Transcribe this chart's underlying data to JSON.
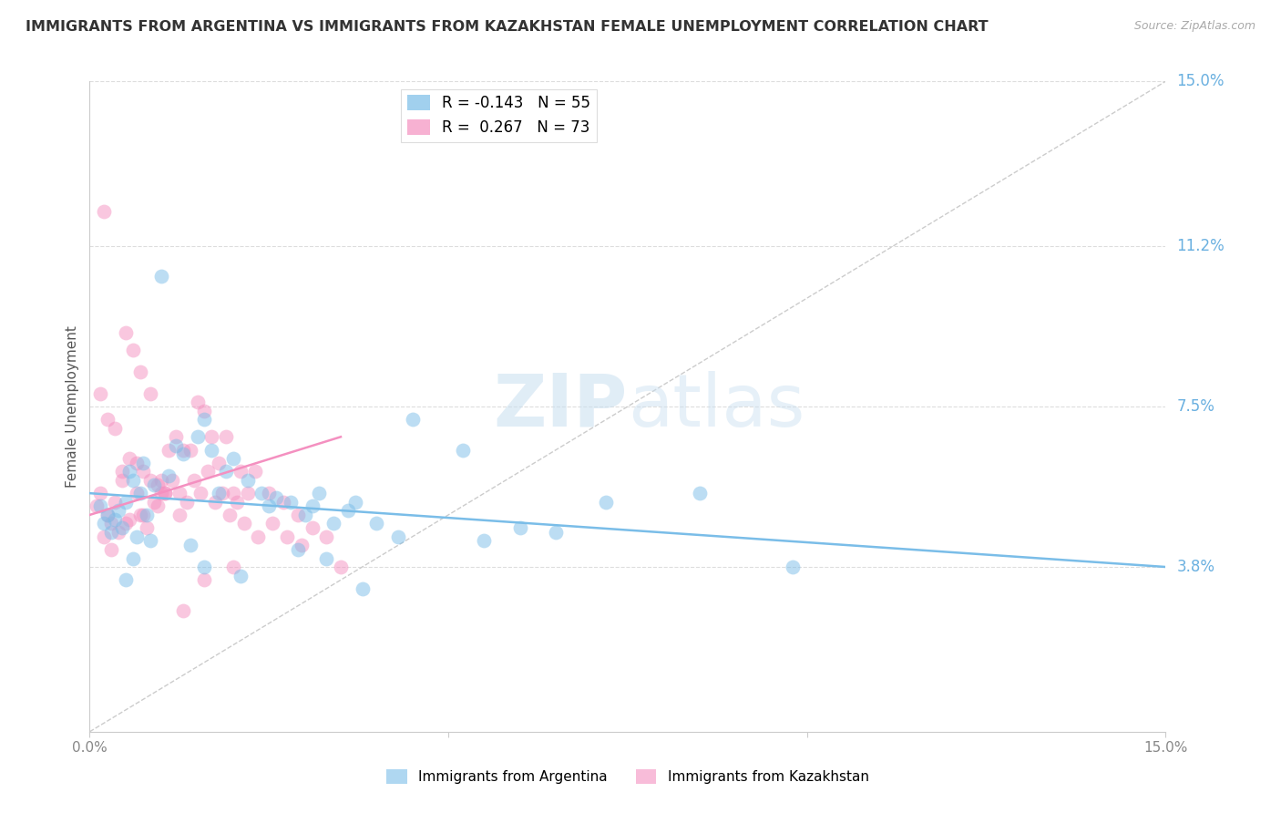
{
  "title": "IMMIGRANTS FROM ARGENTINA VS IMMIGRANTS FROM KAZAKHSTAN FEMALE UNEMPLOYMENT CORRELATION CHART",
  "source": "Source: ZipAtlas.com",
  "ylabel": "Female Unemployment",
  "right_yticks": [
    3.8,
    7.5,
    11.2,
    15.0
  ],
  "right_ytick_labels": [
    "3.8%",
    "7.5%",
    "11.2%",
    "15.0%"
  ],
  "xmin": 0.0,
  "xmax": 15.0,
  "ymin": 0.0,
  "ymax": 15.0,
  "argentina_color": "#7abde8",
  "kazakhstan_color": "#f490c0",
  "argentina_R": -0.143,
  "argentina_N": 55,
  "kazakhstan_R": 0.267,
  "kazakhstan_N": 73,
  "legend_label_argentina": "Immigrants from Argentina",
  "legend_label_kazakhstan": "Immigrants from Kazakhstan",
  "argentina_scatter_x": [
    0.15,
    0.2,
    0.25,
    0.3,
    0.35,
    0.4,
    0.45,
    0.5,
    0.55,
    0.6,
    0.65,
    0.7,
    0.75,
    0.8,
    0.85,
    0.9,
    1.0,
    1.1,
    1.2,
    1.3,
    1.5,
    1.6,
    1.7,
    1.8,
    1.9,
    2.0,
    2.2,
    2.4,
    2.5,
    2.6,
    2.8,
    3.0,
    3.1,
    3.2,
    3.4,
    3.6,
    3.7,
    4.0,
    4.3,
    4.5,
    5.2,
    5.5,
    6.0,
    6.5,
    7.2,
    8.5,
    0.5,
    0.6,
    1.4,
    1.6,
    2.1,
    2.9,
    3.3,
    3.8,
    9.8
  ],
  "argentina_scatter_y": [
    5.2,
    4.8,
    5.0,
    4.6,
    4.9,
    5.1,
    4.7,
    5.3,
    6.0,
    5.8,
    4.5,
    5.5,
    6.2,
    5.0,
    4.4,
    5.7,
    10.5,
    5.9,
    6.6,
    6.4,
    6.8,
    7.2,
    6.5,
    5.5,
    6.0,
    6.3,
    5.8,
    5.5,
    5.2,
    5.4,
    5.3,
    5.0,
    5.2,
    5.5,
    4.8,
    5.1,
    5.3,
    4.8,
    4.5,
    7.2,
    6.5,
    4.4,
    4.7,
    4.6,
    5.3,
    5.5,
    3.5,
    4.0,
    4.3,
    3.8,
    3.6,
    4.2,
    4.0,
    3.3,
    3.8
  ],
  "kazakhstan_scatter_x": [
    0.1,
    0.15,
    0.2,
    0.25,
    0.3,
    0.35,
    0.4,
    0.45,
    0.5,
    0.55,
    0.6,
    0.65,
    0.7,
    0.75,
    0.8,
    0.85,
    0.9,
    0.95,
    1.0,
    1.05,
    1.1,
    1.2,
    1.25,
    1.3,
    1.4,
    1.5,
    1.6,
    1.7,
    1.8,
    1.9,
    2.0,
    2.1,
    2.2,
    2.3,
    2.5,
    2.7,
    2.9,
    0.15,
    0.25,
    0.35,
    0.45,
    0.55,
    0.65,
    0.75,
    0.85,
    0.95,
    1.05,
    1.15,
    1.25,
    1.35,
    1.45,
    1.55,
    1.65,
    1.75,
    1.85,
    1.95,
    2.05,
    2.15,
    2.35,
    2.55,
    2.75,
    2.95,
    3.1,
    3.3,
    3.5,
    0.2,
    0.3,
    0.5,
    0.7,
    1.0,
    1.3,
    1.6,
    2.0
  ],
  "kazakhstan_scatter_y": [
    5.2,
    5.5,
    12.0,
    5.0,
    4.8,
    5.3,
    4.6,
    5.8,
    9.2,
    4.9,
    8.8,
    5.5,
    8.3,
    5.0,
    4.7,
    7.8,
    5.3,
    5.2,
    5.8,
    5.5,
    6.5,
    6.8,
    5.0,
    6.5,
    6.5,
    7.6,
    7.4,
    6.8,
    6.2,
    6.8,
    5.5,
    6.0,
    5.5,
    6.0,
    5.5,
    5.3,
    5.0,
    7.8,
    7.2,
    7.0,
    6.0,
    6.3,
    6.2,
    6.0,
    5.8,
    5.7,
    5.5,
    5.8,
    5.5,
    5.3,
    5.8,
    5.5,
    6.0,
    5.3,
    5.5,
    5.0,
    5.3,
    4.8,
    4.5,
    4.8,
    4.5,
    4.3,
    4.7,
    4.5,
    3.8,
    4.5,
    4.2,
    4.8,
    5.0,
    5.5,
    2.8,
    3.5,
    3.8
  ]
}
